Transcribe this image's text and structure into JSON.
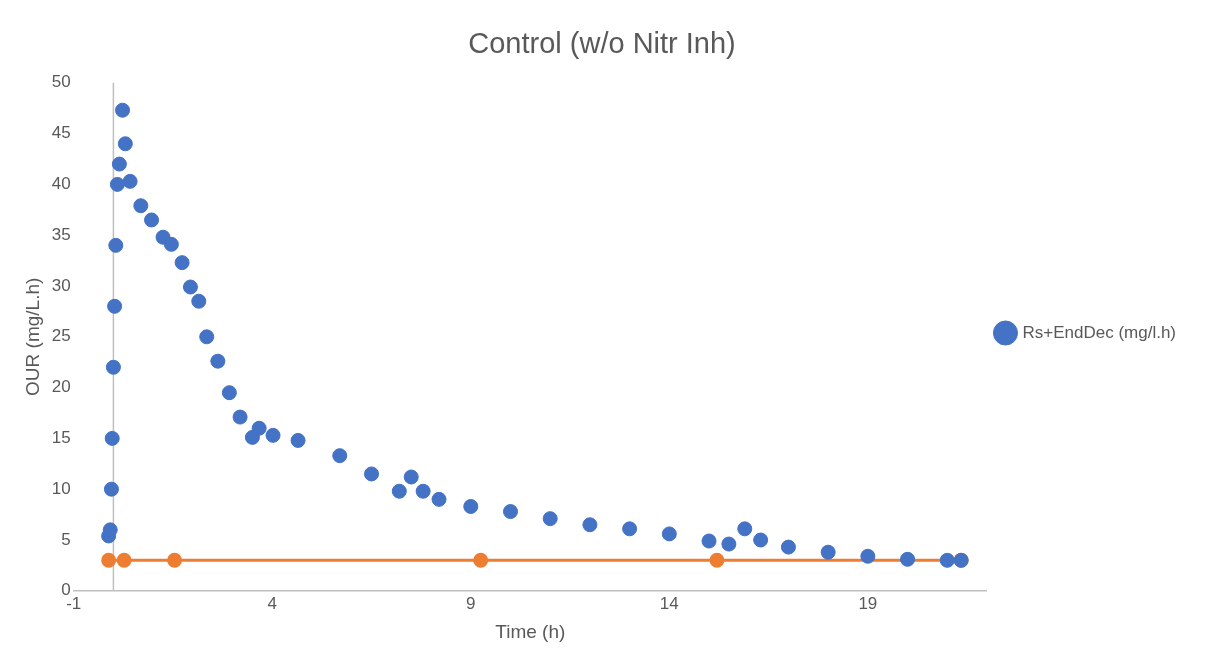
{
  "chart_data": {
    "type": "scatter",
    "title": "Control (w/o Nitr Inh)",
    "xlabel": "Time (h)",
    "ylabel": "OUR (mg/L.h)",
    "xlim": [
      -1,
      22
    ],
    "xticks": [
      -1,
      4,
      9,
      14,
      19
    ],
    "ylim": [
      0,
      50
    ],
    "yticks": [
      0,
      5,
      10,
      15,
      20,
      25,
      30,
      35,
      40,
      45,
      50
    ],
    "grid": false,
    "legend": "right",
    "marker": "circle",
    "series": [
      {
        "name": "Rs+EndDec (mg/l.h)",
        "color": "#4472c4",
        "x": [
          -0.12,
          -0.08,
          -0.05,
          -0.03,
          0,
          0.03,
          0.06,
          0.1,
          0.15,
          0.23,
          0.3,
          0.42,
          0.69,
          0.96,
          1.25,
          1.46,
          1.73,
          1.94,
          2.15,
          2.35,
          2.63,
          2.92,
          3.19,
          3.5,
          3.67,
          4.02,
          4.65,
          5.7,
          6.5,
          7.2,
          7.5,
          7.8,
          8.2,
          9,
          10,
          11,
          12,
          13,
          14,
          15,
          15.5,
          15.9,
          16.3,
          17,
          18,
          19,
          20,
          21,
          21.35
        ],
        "values": [
          5.4,
          6,
          10,
          15,
          22,
          28,
          34,
          40,
          42,
          47.3,
          44,
          40.3,
          37.9,
          36.5,
          34.8,
          34.1,
          32.3,
          29.9,
          28.5,
          25,
          22.6,
          19.5,
          17.1,
          15.1,
          16,
          15.3,
          14.8,
          13.3,
          11.5,
          9.8,
          11.2,
          9.8,
          9,
          8.3,
          7.8,
          7.1,
          6.5,
          6.1,
          5.6,
          4.9,
          4.6,
          6.1,
          5,
          4.3,
          3.8,
          3.4,
          3.1,
          3,
          3
        ]
      },
      {
        "type": "line",
        "color": "#ed7d31",
        "x": [
          -0.12,
          0.27,
          1.54,
          9.25,
          15.2,
          21.35
        ],
        "values": [
          3,
          3,
          3,
          3,
          3,
          3
        ]
      }
    ]
  }
}
